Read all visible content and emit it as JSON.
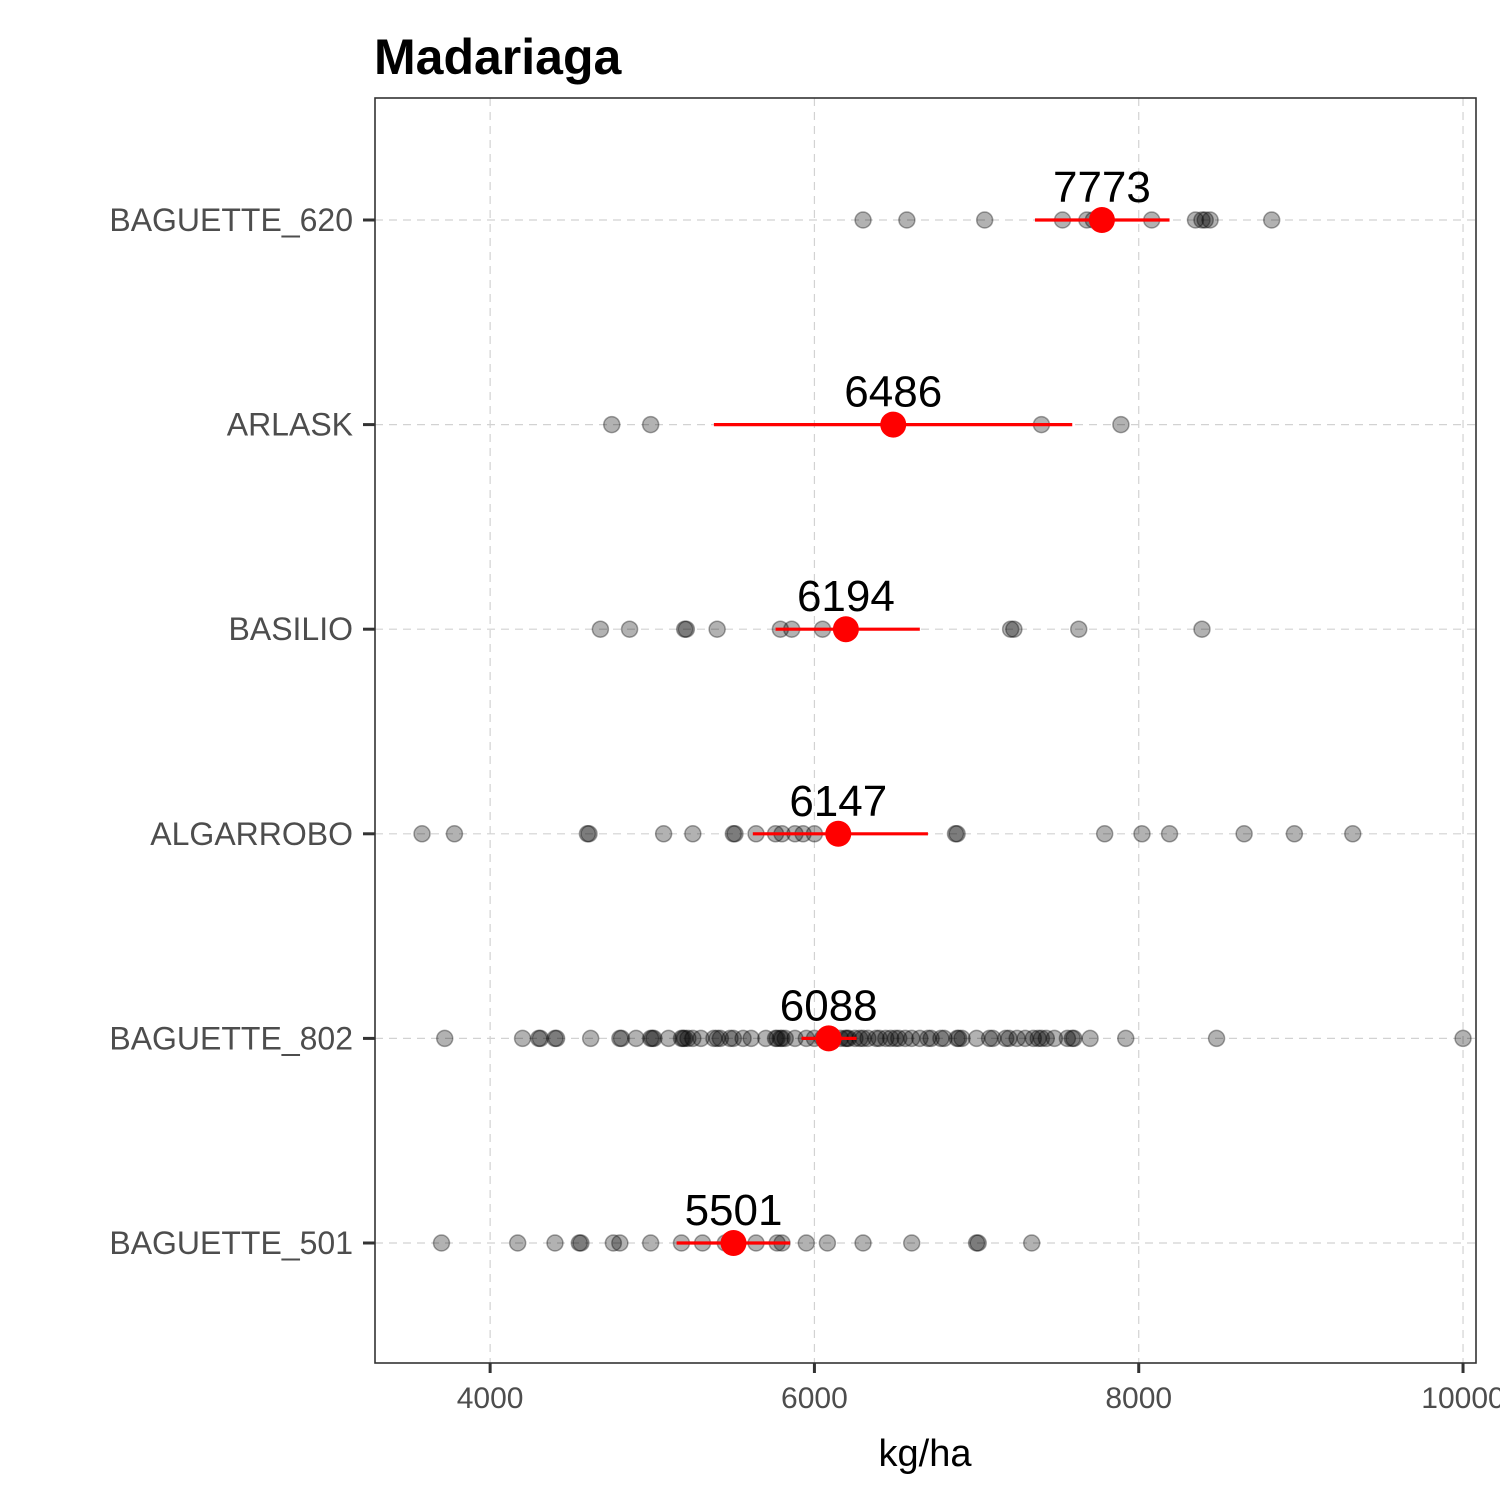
{
  "chart_data": {
    "type": "scatter",
    "title": "Madariaga",
    "xlabel": "kg/ha",
    "ylabel": "",
    "xlim": [
      3290,
      10080
    ],
    "x_ticks": [
      4000,
      6000,
      8000,
      10000
    ],
    "x_tick_labels": [
      "4000",
      "6000",
      "8000",
      "10000"
    ],
    "grid": true,
    "colors": {
      "points": "#000000",
      "mean": "#ff0000",
      "panel_border": "#333333",
      "grid": "#d2d2d2"
    },
    "categories": [
      "BAGUETTE_620",
      "ARLASK",
      "BASILIO",
      "ALGARROBO",
      "BAGUETTE_802",
      "BAGUETTE_501"
    ],
    "groups": [
      {
        "name": "BAGUETTE_620",
        "mean": 7773,
        "mean_label": "7773",
        "ci": [
          7360,
          8190
        ],
        "points": [
          6300,
          6570,
          7050,
          7530,
          7680,
          7720,
          8080,
          8350,
          8390,
          8410,
          8440,
          8820
        ]
      },
      {
        "name": "ARLASK",
        "mean": 6486,
        "mean_label": "6486",
        "ci": [
          5380,
          7590
        ],
        "points": [
          4750,
          4990,
          7400,
          7890
        ]
      },
      {
        "name": "BASILIO",
        "mean": 6194,
        "mean_label": "6194",
        "ci": [
          5760,
          6650
        ],
        "points": [
          4680,
          4860,
          5200,
          5210,
          5400,
          5790,
          5860,
          6050,
          7210,
          7230,
          7630,
          8390
        ]
      },
      {
        "name": "ALGARROBO",
        "mean": 6147,
        "mean_label": "6147",
        "ci": [
          5620,
          6700
        ],
        "points": [
          3580,
          3780,
          4600,
          4610,
          5070,
          5250,
          5500,
          5510,
          5640,
          5760,
          5800,
          5880,
          5930,
          6000,
          6870,
          6880,
          7790,
          8020,
          8190,
          8650,
          8960,
          9320
        ]
      },
      {
        "name": "BAGUETTE_802",
        "mean": 6088,
        "mean_label": "6088",
        "ci": [
          5920,
          6260
        ],
        "points": [
          3720,
          4200,
          4300,
          4310,
          4400,
          4410,
          4620,
          4800,
          4810,
          4900,
          4990,
          5000,
          5010,
          5100,
          5180,
          5190,
          5200,
          5220,
          5250,
          5300,
          5380,
          5400,
          5420,
          5480,
          5500,
          5560,
          5610,
          5700,
          5760,
          5770,
          5790,
          5800,
          5820,
          5880,
          5950,
          6000,
          6050,
          6100,
          6160,
          6190,
          6200,
          6210,
          6250,
          6280,
          6300,
          6330,
          6380,
          6400,
          6440,
          6470,
          6500,
          6520,
          6560,
          6600,
          6650,
          6700,
          6720,
          6780,
          6800,
          6880,
          6890,
          6910,
          7000,
          7080,
          7100,
          7180,
          7200,
          7250,
          7300,
          7350,
          7380,
          7400,
          7430,
          7480,
          7560,
          7590,
          7600,
          7700,
          7920,
          8480,
          10000
        ]
      },
      {
        "name": "BAGUETTE_501",
        "mean": 5501,
        "mean_label": "5501",
        "ci": [
          5150,
          5850
        ],
        "points": [
          3700,
          4170,
          4400,
          4550,
          4560,
          4760,
          4800,
          4990,
          5180,
          5310,
          5450,
          5640,
          5770,
          5800,
          5950,
          6080,
          6300,
          6600,
          7000,
          7010,
          7340
        ]
      }
    ]
  }
}
